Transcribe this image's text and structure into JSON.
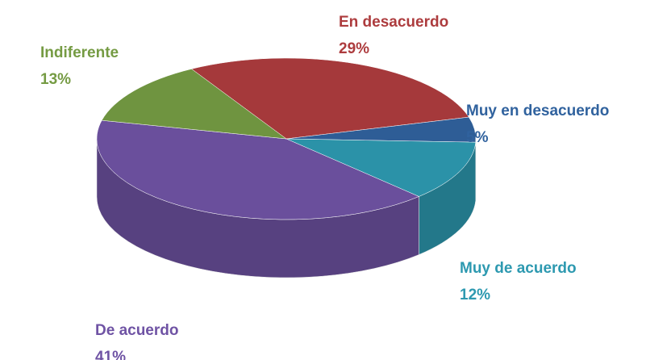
{
  "chart_data": {
    "type": "pie",
    "categories": [
      "En desacuerdo",
      "Muy en desacuerdo",
      "Muy de acuerdo",
      "De acuerdo",
      "Indiferente"
    ],
    "values": [
      29,
      5,
      12,
      41,
      13
    ],
    "value_labels": [
      "29%",
      "5%",
      "12%",
      "41%",
      "13%"
    ],
    "colors": [
      "#a5393b",
      "#2e5d96",
      "#2b92a8",
      "#6a4f9c",
      "#6f9440"
    ]
  }
}
